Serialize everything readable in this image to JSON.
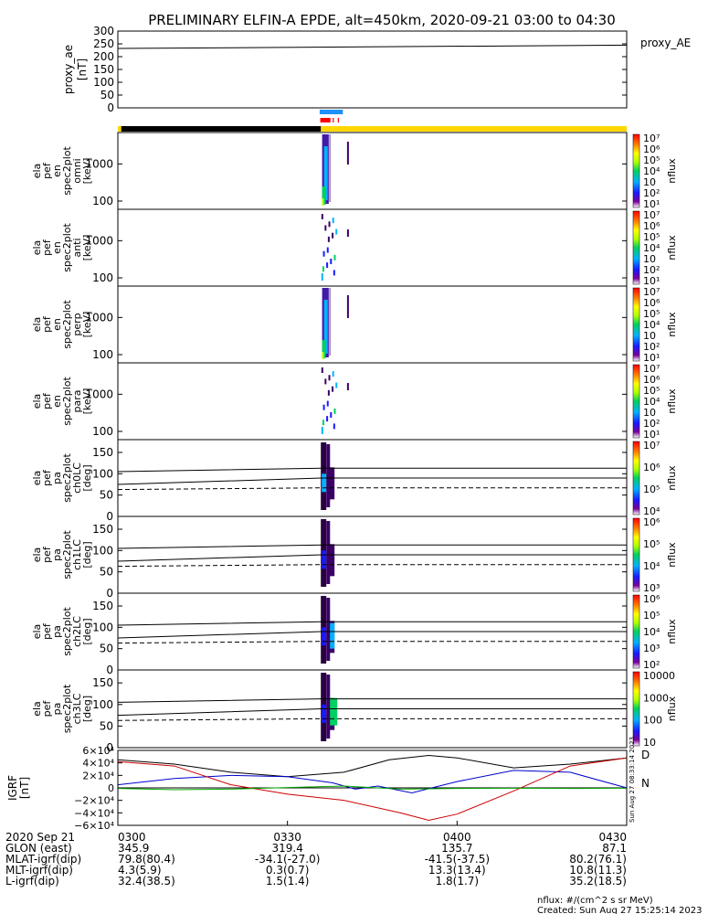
{
  "title": "PRELIMINARY ELFIN-A EPDE, alt=450km, 2020-09-21 03:00 to 04:30",
  "right_stamp": "Sun Aug 27 08:33:14 2023",
  "footer": {
    "units_note": "nflux: #/(cm^2 s sr MeV)",
    "created": "Created: Sun Aug 27 15:25:14 2023"
  },
  "colors": {
    "bar_yellow": "#ffd700",
    "bar_black": "#000000",
    "bar_blue": "#1e90ff",
    "bar_red": "#ff0000"
  },
  "chart_data": [
    {
      "type": "line",
      "panel": "proxy_ae",
      "ylabel": "proxy_ae [nT]",
      "legend": "proxy_AE",
      "yticks": [
        "300",
        "250",
        "200",
        "150",
        "100",
        "50",
        "0"
      ],
      "ylim": [
        0,
        300
      ],
      "xlim": [
        0,
        90
      ],
      "series": [
        {
          "name": "proxy_AE",
          "x": [
            0,
            90
          ],
          "y": [
            232,
            245
          ]
        }
      ]
    },
    {
      "type": "bar",
      "panel": "status_bars",
      "rows": [
        {
          "color": "#1e90ff",
          "segments": [
            [
              35.7,
              39.8
            ]
          ]
        },
        {
          "color": "#ff0000",
          "segments": [
            [
              35.8,
              37.6
            ],
            [
              38.0,
              38.2
            ],
            [
              38.9,
              39.1
            ]
          ]
        },
        {
          "color": "#ffd700",
          "segments": [
            [
              0,
              0.6
            ],
            [
              35.9,
              90
            ]
          ]
        },
        {
          "color": "#000000",
          "segments": [
            [
              0.6,
              35.9
            ]
          ]
        }
      ]
    },
    {
      "type": "heatmap",
      "panel": "ela_pef_en_spec2plot_omni",
      "ylabel": [
        "ela",
        "pef",
        "en",
        "spec2plot",
        "omni",
        "[keV]"
      ],
      "ylim": [
        60,
        7000
      ],
      "yscale": "log",
      "yticks": [
        "1000",
        "100"
      ],
      "colorbar": {
        "label": "nflux",
        "ticks": [
          "10⁷",
          "10⁶",
          "10⁵",
          "10⁴",
          "10⁳",
          "10²",
          "10¹"
        ]
      },
      "x_range": [
        36.0,
        38.6
      ]
    },
    {
      "type": "heatmap",
      "panel": "ela_pef_en_spec2plot_anti",
      "ylabel": [
        "ela",
        "pef",
        "en",
        "spec2plot",
        "anti",
        "[keV]"
      ],
      "ylim": [
        60,
        7000
      ],
      "yscale": "log",
      "yticks": [
        "1000",
        "100"
      ],
      "colorbar": {
        "label": "nflux",
        "ticks": [
          "10⁷",
          "10⁶",
          "10⁵",
          "10⁴",
          "10⁳",
          "10²",
          "10¹"
        ]
      },
      "x_range": [
        36.0,
        38.6
      ]
    },
    {
      "type": "heatmap",
      "panel": "ela_pef_en_spec2plot_perp",
      "ylabel": [
        "ela",
        "pef",
        "en",
        "spec2plot",
        "perp",
        "[keV]"
      ],
      "ylim": [
        60,
        7000
      ],
      "yscale": "log",
      "yticks": [
        "1000",
        "100"
      ],
      "colorbar": {
        "label": "nflux",
        "ticks": [
          "10⁷",
          "10⁶",
          "10⁵",
          "10⁴",
          "10⁳",
          "10²",
          "10¹"
        ]
      },
      "x_range": [
        36.0,
        38.6
      ]
    },
    {
      "type": "heatmap",
      "panel": "ela_pef_en_spec2plot_para",
      "ylabel": [
        "ela",
        "pef",
        "en",
        "spec2plot",
        "para",
        "[keV]"
      ],
      "ylim": [
        60,
        7000
      ],
      "yscale": "log",
      "yticks": [
        "1000",
        "100"
      ],
      "colorbar": {
        "label": "nflux",
        "ticks": [
          "10⁷",
          "10⁶",
          "10⁵",
          "10⁴",
          "10⁳",
          "10²",
          "10¹"
        ]
      },
      "x_range": [
        36.0,
        38.6
      ]
    },
    {
      "type": "heatmap",
      "panel": "ela_pef_pa_spec2plot_ch0LC",
      "ylabel": [
        "ela",
        "pef",
        "pa",
        "spec2plot",
        "ch0LC",
        "[deg]"
      ],
      "ylim": [
        0,
        180
      ],
      "yticks": [
        "150",
        "100",
        "50",
        "0"
      ],
      "colorbar": {
        "label": "nflux",
        "ticks": [
          "10⁷",
          "10⁶",
          "10⁵",
          "10⁴"
        ]
      },
      "loss_cone_lines": {
        "x": [
          0,
          36,
          90
        ],
        "upper": [
          105,
          113,
          113
        ],
        "lower": [
          75,
          90,
          90
        ],
        "dashed": [
          63,
          67,
          67
        ]
      }
    },
    {
      "type": "heatmap",
      "panel": "ela_pef_pa_spec2plot_ch1LC",
      "ylabel": [
        "ela",
        "pef",
        "pa",
        "spec2plot",
        "ch1LC",
        "[deg]"
      ],
      "ylim": [
        0,
        180
      ],
      "yticks": [
        "150",
        "100",
        "50",
        "0"
      ],
      "colorbar": {
        "label": "nflux",
        "ticks": [
          "10⁶",
          "10⁵",
          "10⁴",
          "10³"
        ]
      },
      "loss_cone_lines": {
        "x": [
          0,
          36,
          90
        ],
        "upper": [
          105,
          113,
          113
        ],
        "lower": [
          75,
          90,
          90
        ],
        "dashed": [
          63,
          67,
          67
        ]
      }
    },
    {
      "type": "heatmap",
      "panel": "ela_pef_pa_spec2plot_ch2LC",
      "ylabel": [
        "ela",
        "pef",
        "pa",
        "spec2plot",
        "ch2LC",
        "[deg]"
      ],
      "ylim": [
        0,
        180
      ],
      "yticks": [
        "150",
        "100",
        "50",
        "0"
      ],
      "colorbar": {
        "label": "nflux",
        "ticks": [
          "10⁶",
          "10⁵",
          "10⁴",
          "10³",
          "10²"
        ]
      },
      "loss_cone_lines": {
        "x": [
          0,
          36,
          90
        ],
        "upper": [
          105,
          113,
          113
        ],
        "lower": [
          75,
          90,
          90
        ],
        "dashed": [
          63,
          67,
          67
        ]
      }
    },
    {
      "type": "heatmap",
      "panel": "ela_pef_pa_spec2plot_ch3LC",
      "ylabel": [
        "ela",
        "pef",
        "pa",
        "spec2plot",
        "ch3LC",
        "[deg]"
      ],
      "ylim": [
        0,
        180
      ],
      "yticks": [
        "150",
        "100",
        "50",
        "0"
      ],
      "colorbar": {
        "label": "nflux",
        "ticks": [
          "10000",
          "1000",
          "100",
          "10"
        ]
      },
      "loss_cone_lines": {
        "x": [
          0,
          36,
          90
        ],
        "upper": [
          105,
          113,
          113
        ],
        "lower": [
          75,
          90,
          90
        ],
        "dashed": [
          63,
          67,
          67
        ]
      }
    },
    {
      "type": "line",
      "panel": "IGRF",
      "ylabel": "IGRF [nT]",
      "ylim": [
        -60000,
        60000
      ],
      "yticks": [
        "6×10⁴",
        "4×10⁴",
        "2×10⁴",
        "0",
        "−2×10⁴",
        "−4×10⁴",
        "−6×10⁴"
      ],
      "legend": [
        "D",
        "N"
      ],
      "series": [
        {
          "color": "#000000",
          "x": [
            0,
            10,
            20,
            30,
            40,
            48,
            55,
            60,
            70,
            80,
            90
          ],
          "y": [
            45000,
            38000,
            25000,
            18000,
            25000,
            45000,
            52000,
            48000,
            32000,
            38000,
            48000
          ]
        },
        {
          "color": "#0000cc",
          "x": [
            0,
            10,
            20,
            30,
            38,
            42,
            46,
            52,
            60,
            70,
            80,
            90
          ],
          "y": [
            5000,
            15000,
            20000,
            18000,
            8000,
            -2000,
            3000,
            -8000,
            10000,
            28000,
            25000,
            0
          ]
        },
        {
          "color": "#cc0000",
          "x": [
            0,
            10,
            20,
            30,
            40,
            50,
            55,
            60,
            70,
            80,
            90
          ],
          "y": [
            42000,
            35000,
            5000,
            -10000,
            -20000,
            -40000,
            -52000,
            -42000,
            -5000,
            35000,
            48000
          ]
        },
        {
          "color": "#00aa00",
          "x": [
            0,
            10,
            20,
            30,
            40,
            50,
            60,
            70,
            80,
            90
          ],
          "y": [
            -1000,
            -3000,
            -2000,
            500,
            3000,
            -2000,
            -1000,
            -500,
            -1000,
            -500
          ]
        }
      ]
    }
  ],
  "x_axis": {
    "tick_labels": [
      "0300",
      "0330",
      "0400",
      "0430"
    ],
    "tick_values": [
      0,
      30,
      60,
      90
    ]
  },
  "ephemeris": {
    "rows": [
      {
        "label": "2020 Sep 21",
        "values": [
          "0300",
          "0330",
          "0400",
          "0430"
        ]
      },
      {
        "label": "GLON (east)",
        "values": [
          "345.9",
          "319.4",
          "135.7",
          "87.1"
        ]
      },
      {
        "label": "MLAT-igrf(dip)",
        "values": [
          "79.8(80.4)",
          "-34.1(-27.0)",
          "-41.5(-37.5)",
          "80.2(76.1)"
        ]
      },
      {
        "label": "MLT-igrf(dip)",
        "values": [
          "4.3(5.9)",
          "0.3(0.7)",
          "13.3(13.4)",
          "10.8(11.3)"
        ]
      },
      {
        "label": "L-igrf(dip)",
        "values": [
          "32.4(38.5)",
          "1.5(1.4)",
          "1.8(1.7)",
          "35.2(18.5)"
        ]
      }
    ]
  }
}
